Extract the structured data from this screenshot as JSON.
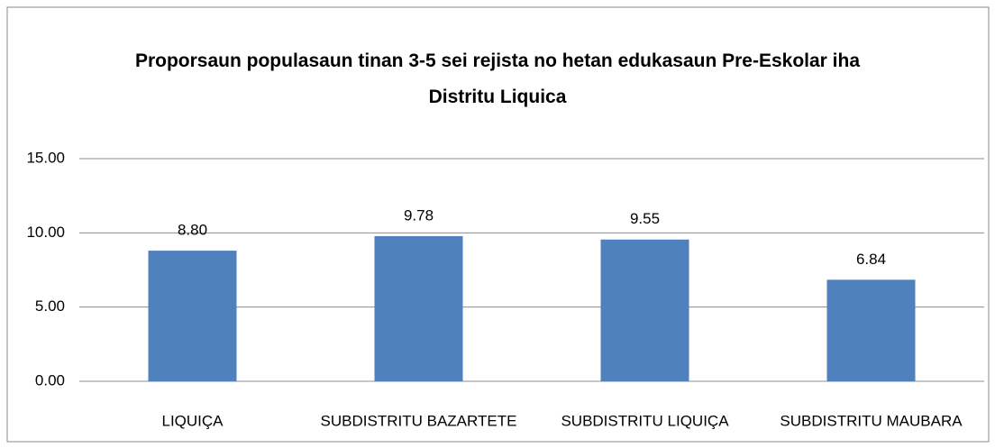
{
  "chart_data": {
    "type": "bar",
    "title": "Proporsaun populasaun tinan 3-5 sei rejista no hetan edukasaun Pre-Eskolar iha Distritu Liquica",
    "categories": [
      "LIQUIÇA",
      "SUBDISTRITU BAZARTETE",
      "SUBDISTRITU LIQUIÇA",
      "SUBDISTRITU MAUBARA"
    ],
    "values": [
      8.8,
      9.78,
      9.55,
      6.84
    ],
    "value_labels": [
      "8.80",
      "9.78",
      "9.55",
      "6.84"
    ],
    "color": "#4f81bd",
    "ylim": [
      0,
      15
    ],
    "yticks": [
      {
        "value": 0,
        "label": "0.00"
      },
      {
        "value": 5,
        "label": "5.00"
      },
      {
        "value": 10,
        "label": "10.00"
      },
      {
        "value": 15,
        "label": "15.00"
      }
    ],
    "grid": true
  }
}
